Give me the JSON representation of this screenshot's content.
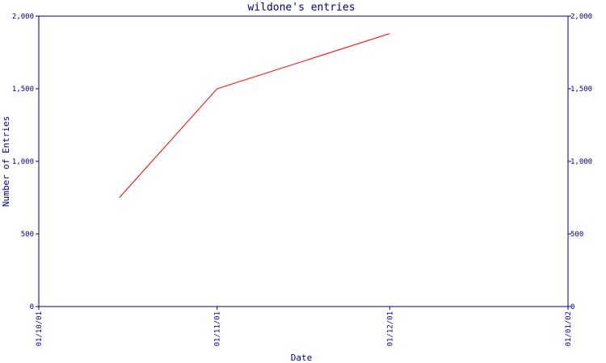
{
  "chart_data": {
    "type": "line",
    "title": "wildone's entries",
    "xlabel": "Date",
    "ylabel": "Number of Entries",
    "ylim": [
      0,
      2000
    ],
    "y_ticks": [
      0,
      500,
      1000,
      1500,
      2000
    ],
    "y_tick_labels": [
      "0",
      "500",
      "1,000",
      "1,500",
      "2,000"
    ],
    "x_range": [
      "2001-10-01",
      "2002-01-01"
    ],
    "x_ticks": [
      "2001-10-01",
      "2001-11-01",
      "2001-12-01",
      "2002-01-01"
    ],
    "x_tick_labels": [
      "01/10/01",
      "01/11/01",
      "01/12/01",
      "01/01/02"
    ],
    "series": [
      {
        "x": [
          "2001-10-15",
          "2001-11-01",
          "2001-12-01"
        ],
        "y": [
          750,
          1500,
          1880
        ]
      }
    ],
    "grid": false,
    "legend": "none",
    "colors": {
      "axes": "#000080",
      "line": "#ff0000",
      "text": "#000080"
    }
  }
}
